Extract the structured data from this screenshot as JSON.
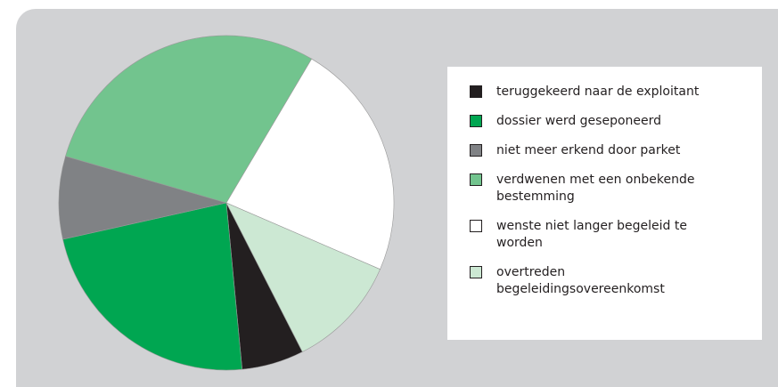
{
  "chart_data": {
    "type": "pie",
    "categories": [
      "teruggekeerd naar de exploitant",
      "dossier werd geseponeerd",
      "niet meer erkend door parket",
      "verdwenen met een onbekende bestemming",
      "wenste niet langer begeleid te worden",
      "overtreden begeleidingsovereenkomst"
    ],
    "values": [
      6,
      23,
      8,
      29,
      23,
      11
    ],
    "colors": [
      "#231f20",
      "#00a651",
      "#808285",
      "#72c48e",
      "#ffffff",
      "#cce8d3"
    ]
  }
}
